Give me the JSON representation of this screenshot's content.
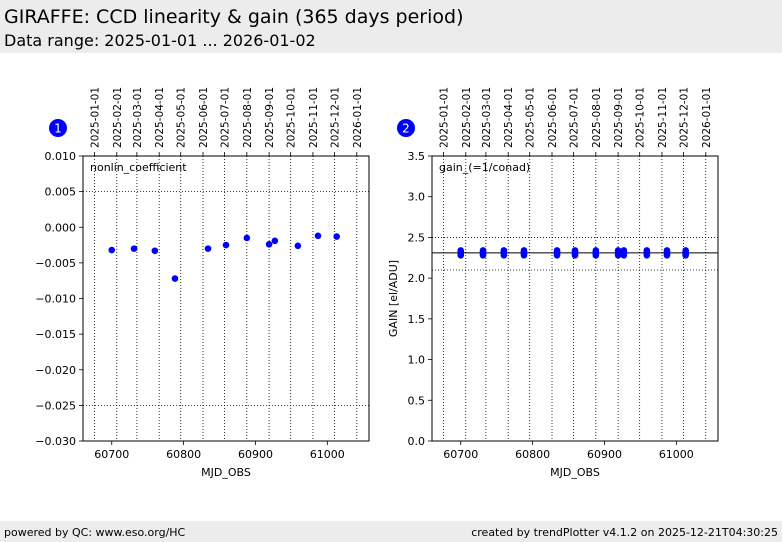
{
  "header": {
    "title": "GIRAFFE: CCD linearity & gain (365 days period)",
    "subtitle": "Data range: 2025-01-01 ... 2026-01-02"
  },
  "footer": {
    "left": "powered by QC: www.eso.org/HC",
    "right": "created by trendPlotter v4.1.2 on 2025-12-21T04:30:25"
  },
  "colors": {
    "points": "#0000ff",
    "badge": "#0000ff",
    "header_bg": "#ececec"
  },
  "chart_data": [
    {
      "type": "scatter",
      "badge": "1",
      "annotation": "nonlin_coefficient",
      "xlabel": "MJD_OBS",
      "ylabel": "",
      "xlim": [
        60660,
        61058
      ],
      "ylim": [
        -0.03,
        0.01
      ],
      "xticks": [
        60700,
        60800,
        60900,
        61000
      ],
      "xtick_labels": [
        "60700",
        "60800",
        "60900",
        "61000"
      ],
      "yticks": [
        0.01,
        0.005,
        0.0,
        -0.005,
        -0.01,
        -0.015,
        -0.02,
        -0.025,
        -0.03
      ],
      "ytick_labels": [
        "0.010",
        "0.005",
        "0.000",
        "−0.005",
        "−0.010",
        "−0.015",
        "−0.020",
        "−0.025",
        "−0.030"
      ],
      "ref_lines_dotted": [
        0.005,
        -0.025
      ],
      "ref_lines_solid": [],
      "date_ticks": [
        {
          "mjd": 60676,
          "label": "2025-01-01"
        },
        {
          "mjd": 60707,
          "label": "2025-02-01"
        },
        {
          "mjd": 60735,
          "label": "2025-03-01"
        },
        {
          "mjd": 60766,
          "label": "2025-04-01"
        },
        {
          "mjd": 60796,
          "label": "2025-05-01"
        },
        {
          "mjd": 60827,
          "label": "2025-06-01"
        },
        {
          "mjd": 60857,
          "label": "2025-07-01"
        },
        {
          "mjd": 60888,
          "label": "2025-08-01"
        },
        {
          "mjd": 60919,
          "label": "2025-09-01"
        },
        {
          "mjd": 60949,
          "label": "2025-10-01"
        },
        {
          "mjd": 60980,
          "label": "2025-11-01"
        },
        {
          "mjd": 61010,
          "label": "2025-12-01"
        },
        {
          "mjd": 61041,
          "label": "2026-01-01"
        }
      ],
      "series": [
        {
          "x": [
            60700,
            60731,
            60760,
            60788,
            60834,
            60859,
            60888,
            60919,
            60927,
            60959,
            60987,
            61013
          ],
          "y": [
            -0.0032,
            -0.003,
            -0.0033,
            -0.0072,
            -0.003,
            -0.0025,
            -0.0015,
            -0.0024,
            -0.0019,
            -0.0026,
            -0.0012,
            -0.0013
          ]
        }
      ]
    },
    {
      "type": "scatter",
      "badge": "2",
      "annotation": "gain_(=1/conad)",
      "xlabel": "MJD_OBS",
      "ylabel": "GAIN [el/ADU]",
      "xlim": [
        60660,
        61058
      ],
      "ylim": [
        0.0,
        3.5
      ],
      "xticks": [
        60700,
        60800,
        60900,
        61000
      ],
      "xtick_labels": [
        "60700",
        "60800",
        "60900",
        "61000"
      ],
      "yticks": [
        3.5,
        3.0,
        2.5,
        2.0,
        1.5,
        1.0,
        0.5,
        0.0
      ],
      "ytick_labels": [
        "3.5",
        "3.0",
        "2.5",
        "2.0",
        "1.5",
        "1.0",
        "0.5",
        "0.0"
      ],
      "ref_lines_dotted": [
        2.5,
        2.1
      ],
      "ref_lines_solid": [
        2.31
      ],
      "date_ticks": [
        {
          "mjd": 60676,
          "label": "2025-01-01"
        },
        {
          "mjd": 60707,
          "label": "2025-02-01"
        },
        {
          "mjd": 60735,
          "label": "2025-03-01"
        },
        {
          "mjd": 60766,
          "label": "2025-04-01"
        },
        {
          "mjd": 60796,
          "label": "2025-05-01"
        },
        {
          "mjd": 60827,
          "label": "2025-06-01"
        },
        {
          "mjd": 60857,
          "label": "2025-07-01"
        },
        {
          "mjd": 60888,
          "label": "2025-08-01"
        },
        {
          "mjd": 60919,
          "label": "2025-09-01"
        },
        {
          "mjd": 60949,
          "label": "2025-10-01"
        },
        {
          "mjd": 60980,
          "label": "2025-11-01"
        },
        {
          "mjd": 61010,
          "label": "2025-12-01"
        },
        {
          "mjd": 61041,
          "label": "2026-01-01"
        }
      ],
      "series": [
        {
          "x": [
            60700,
            60700,
            60700,
            60700,
            60731,
            60731,
            60731,
            60731,
            60760,
            60760,
            60760,
            60760,
            60788,
            60788,
            60788,
            60788,
            60834,
            60834,
            60834,
            60834,
            60859,
            60859,
            60859,
            60859,
            60888,
            60888,
            60888,
            60888,
            60919,
            60919,
            60919,
            60919,
            60927,
            60927,
            60927,
            60927,
            60959,
            60959,
            60959,
            60959,
            60987,
            60987,
            60987,
            60987,
            61013,
            61013,
            61013,
            61013
          ],
          "y": [
            2.28,
            2.3,
            2.32,
            2.34,
            2.28,
            2.3,
            2.32,
            2.34,
            2.28,
            2.3,
            2.32,
            2.34,
            2.28,
            2.3,
            2.32,
            2.34,
            2.28,
            2.3,
            2.32,
            2.34,
            2.28,
            2.3,
            2.32,
            2.34,
            2.28,
            2.3,
            2.32,
            2.34,
            2.28,
            2.3,
            2.32,
            2.34,
            2.28,
            2.3,
            2.32,
            2.34,
            2.28,
            2.3,
            2.32,
            2.34,
            2.28,
            2.3,
            2.32,
            2.34,
            2.28,
            2.3,
            2.32,
            2.34
          ]
        }
      ]
    }
  ]
}
